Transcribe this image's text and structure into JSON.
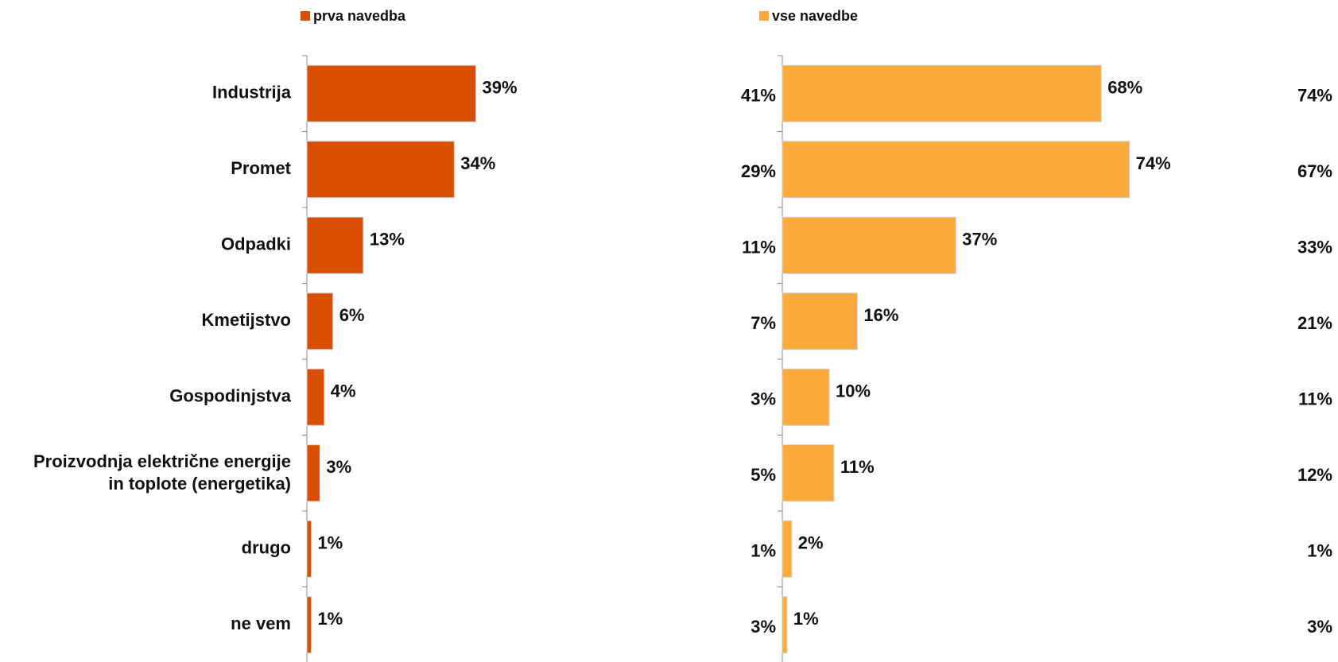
{
  "chart_data": [
    {
      "type": "bar",
      "orientation": "horizontal",
      "categories": [
        "Industrija",
        "Promet",
        "Odpadki",
        "Kmetijstvo",
        "Gospodinjstva",
        "Proizvodnja električne energije in toplote (energetika)",
        "drugo",
        "ne vem"
      ],
      "series": [
        {
          "name": "prva navedba",
          "color": "#d94e00",
          "values": [
            39,
            34,
            13,
            6,
            4,
            3,
            1,
            1
          ],
          "labels": [
            "39%",
            "34%",
            "13%",
            "6%",
            "4%",
            "3%",
            "1%",
            "1%"
          ]
        }
      ],
      "xlim": [
        0,
        100
      ],
      "grid": false,
      "legend": "top"
    },
    {
      "type": "bar",
      "orientation": "horizontal",
      "categories": [
        "Industrija",
        "Promet",
        "Odpadki",
        "Kmetijstvo",
        "Gospodinjstva",
        "Proizvodnja električne energije in toplote (energetika)",
        "drugo",
        "ne vem"
      ],
      "series": [
        {
          "name": "vse navedbe",
          "color": "#fbab3b",
          "values": [
            68,
            74,
            37,
            16,
            10,
            11,
            2,
            1
          ],
          "labels": [
            "68%",
            "74%",
            "37%",
            "16%",
            "10%",
            "11%",
            "2%",
            "1%"
          ]
        }
      ],
      "xlim": [
        0,
        100
      ],
      "grid": false,
      "legend": "top",
      "left_labels": [
        "41%",
        "29%",
        "11%",
        "7%",
        "3%",
        "5%",
        "1%",
        "3%"
      ],
      "right_labels": [
        "74%",
        "67%",
        "33%",
        "21%",
        "11%",
        "12%",
        "1%",
        "3%"
      ]
    }
  ]
}
